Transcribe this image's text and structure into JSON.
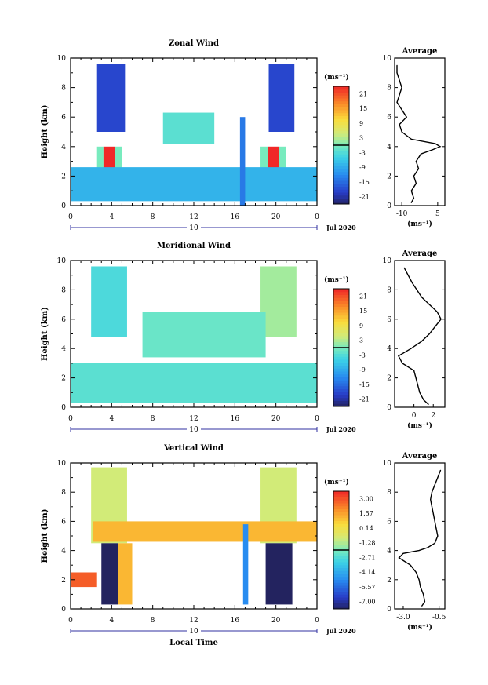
{
  "chart_data": [
    {
      "type": "heatmap",
      "title": "Zonal Wind",
      "ylabel": "Height (km)",
      "xticks": [
        "0",
        "4",
        "8",
        "12",
        "16",
        "20",
        "0"
      ],
      "xlim": [
        0,
        24
      ],
      "yticks": [
        "0",
        "2",
        "4",
        "6",
        "8",
        "10"
      ],
      "ylim": [
        0,
        10
      ],
      "date_day": "10",
      "date_label": "Jul 2020",
      "colorbar": {
        "unit": "(ms⁻¹)",
        "ticks": [
          "21",
          "15",
          "9",
          "3",
          "-3",
          "-9",
          "-15",
          "-21"
        ],
        "range": [
          -21,
          21
        ]
      },
      "blobs": [
        {
          "x0": 2.5,
          "x1": 5.3,
          "y0": 5.0,
          "y1": 9.6,
          "v": -16
        },
        {
          "x0": 19.3,
          "x1": 21.8,
          "y0": 5.0,
          "y1": 9.6,
          "v": -16
        },
        {
          "x0": 2.5,
          "x1": 3.2,
          "y0": 0.8,
          "y1": 4.0,
          "v": 0
        },
        {
          "x0": 3.2,
          "x1": 4.3,
          "y0": 0.8,
          "y1": 4.0,
          "v": 24
        },
        {
          "x0": 4.3,
          "x1": 5.0,
          "y0": 0.8,
          "y1": 4.0,
          "v": 0
        },
        {
          "x0": 18.5,
          "x1": 19.2,
          "y0": 0.8,
          "y1": 4.0,
          "v": 0
        },
        {
          "x0": 19.2,
          "x1": 20.3,
          "y0": 0.8,
          "y1": 4.0,
          "v": 24
        },
        {
          "x0": 20.3,
          "x1": 21.0,
          "y0": 0.8,
          "y1": 4.0,
          "v": 0
        },
        {
          "x0": 0.0,
          "x1": 24.0,
          "y0": 0.3,
          "y1": 2.6,
          "v": -7
        },
        {
          "x0": 9.0,
          "x1": 14.0,
          "y0": 4.2,
          "y1": 6.3,
          "v": -2
        },
        {
          "x0": 16.5,
          "x1": 17.0,
          "y0": 0.0,
          "y1": 6.0,
          "v": -12
        }
      ],
      "average_profile": {
        "title": "Average",
        "xlabel": "(ms⁻¹)",
        "xticks": [
          "-10",
          "5"
        ],
        "xlim": [
          -13,
          8
        ],
        "height": [
          0.2,
          0.5,
          1.0,
          1.5,
          2.0,
          2.5,
          3.0,
          3.5,
          3.8,
          4.0,
          4.2,
          4.5,
          5.0,
          5.5,
          6.0,
          6.5,
          7.0,
          7.5,
          8.0,
          8.5,
          9.0,
          9.5
        ],
        "values": [
          -6,
          -5,
          -6,
          -4,
          -5,
          -3,
          -4,
          -2,
          3,
          6,
          4,
          -6,
          -10,
          -11,
          -8,
          -10,
          -12,
          -11,
          -10,
          -11,
          -12,
          -12
        ]
      }
    },
    {
      "type": "heatmap",
      "title": "Meridional Wind",
      "ylabel": "Height (km)",
      "xticks": [
        "0",
        "4",
        "8",
        "12",
        "16",
        "20",
        "0"
      ],
      "xlim": [
        0,
        24
      ],
      "yticks": [
        "0",
        "2",
        "4",
        "6",
        "8",
        "10"
      ],
      "ylim": [
        0,
        10
      ],
      "date_day": "10",
      "date_label": "Jul 2020",
      "colorbar": {
        "unit": "(ms⁻¹)",
        "ticks": [
          "21",
          "15",
          "9",
          "3",
          "-3",
          "-9",
          "-15",
          "-21"
        ],
        "range": [
          -21,
          21
        ]
      },
      "blobs": [
        {
          "x0": 2.0,
          "x1": 5.5,
          "y0": 4.8,
          "y1": 9.6,
          "v": -3
        },
        {
          "x0": 18.5,
          "x1": 22.0,
          "y0": 4.8,
          "y1": 9.6,
          "v": 2
        },
        {
          "x0": 0.0,
          "x1": 24.0,
          "y0": 0.3,
          "y1": 3.0,
          "v": -2
        },
        {
          "x0": 7.0,
          "x1": 19.0,
          "y0": 3.4,
          "y1": 6.5,
          "v": -1
        }
      ],
      "average_profile": {
        "title": "Average",
        "xlabel": "(ms⁻¹)",
        "xticks": [
          "0",
          "2"
        ],
        "xlim": [
          -2,
          3.2
        ],
        "height": [
          0.2,
          0.5,
          1.0,
          1.5,
          2.0,
          2.5,
          3.0,
          3.5,
          4.0,
          4.5,
          5.0,
          5.5,
          6.0,
          6.5,
          7.0,
          7.5,
          8.0,
          8.5,
          9.0,
          9.5
        ],
        "values": [
          1.5,
          1.0,
          0.6,
          0.4,
          0.2,
          0.0,
          -1.2,
          -1.6,
          -0.3,
          0.8,
          1.6,
          2.2,
          2.8,
          2.4,
          1.6,
          0.8,
          0.3,
          -0.2,
          -0.6,
          -1.0
        ]
      }
    },
    {
      "type": "heatmap",
      "title": "Vertical Wind",
      "ylabel": "Height (km)",
      "xlabel": "Local Time",
      "xticks": [
        "0",
        "4",
        "8",
        "12",
        "16",
        "20",
        "0"
      ],
      "xlim": [
        0,
        24
      ],
      "yticks": [
        "0",
        "2",
        "4",
        "6",
        "8",
        "10"
      ],
      "ylim": [
        0,
        10
      ],
      "date_day": "10",
      "date_label": "Jul 2020",
      "colorbar": {
        "unit": "(ms⁻¹)",
        "ticks": [
          "3.00",
          "1.57",
          "0.14",
          "-1.28",
          "-2.71",
          "-4.14",
          "-5.57",
          "-7.00"
        ],
        "range": [
          -7.0,
          3.0
        ]
      },
      "blobs": [
        {
          "x0": 2.0,
          "x1": 5.5,
          "y0": 4.5,
          "y1": 9.7,
          "v": -1.0
        },
        {
          "x0": 18.5,
          "x1": 22.0,
          "y0": 4.5,
          "y1": 9.7,
          "v": -1.0
        },
        {
          "x0": 2.2,
          "x1": 24.0,
          "y0": 4.6,
          "y1": 6.0,
          "v": 0.8
        },
        {
          "x0": 3.0,
          "x1": 4.6,
          "y0": 0.3,
          "y1": 4.5,
          "v": -7
        },
        {
          "x0": 19.0,
          "x1": 21.6,
          "y0": 0.3,
          "y1": 4.5,
          "v": -7
        },
        {
          "x0": 4.6,
          "x1": 6.0,
          "y0": 0.3,
          "y1": 4.5,
          "v": 0.8
        },
        {
          "x0": 0.0,
          "x1": 2.5,
          "y0": 1.5,
          "y1": 2.5,
          "v": 2.2
        },
        {
          "x0": 16.8,
          "x1": 17.3,
          "y0": 0.3,
          "y1": 5.8,
          "v": -4.5
        }
      ],
      "average_profile": {
        "title": "Average",
        "xlabel": "(ms⁻¹)",
        "xticks": [
          "-3.0",
          "-0.5"
        ],
        "xlim": [
          -3.6,
          -0.1
        ],
        "height": [
          0.2,
          0.5,
          1.0,
          1.5,
          2.0,
          2.5,
          3.0,
          3.5,
          3.8,
          4.0,
          4.2,
          4.5,
          5.0,
          5.5,
          6.0,
          6.5,
          7.0,
          7.5,
          8.0,
          8.5,
          9.0,
          9.5
        ],
        "values": [
          -1.7,
          -1.5,
          -1.6,
          -1.8,
          -1.9,
          -2.1,
          -2.5,
          -3.3,
          -3.0,
          -1.9,
          -1.3,
          -0.8,
          -0.6,
          -0.7,
          -0.8,
          -0.9,
          -1.0,
          -1.1,
          -1.0,
          -0.8,
          -0.6,
          -0.4
        ]
      }
    }
  ]
}
